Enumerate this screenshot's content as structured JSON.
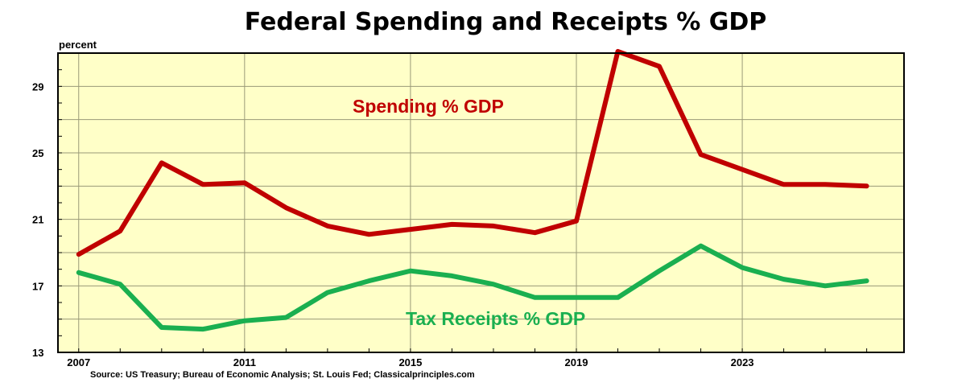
{
  "title": "Federal Spending and Receipts % GDP",
  "ylabel": "percent",
  "source": "Source: US Treasury; Bureau of Economic Analysis; St. Louis Fed; Classicalprinciples.com",
  "colors": {
    "spending": "#c00000",
    "receipts": "#1aaf50",
    "plot_bg": "#ffffc8",
    "grid": "#9a9a78"
  },
  "chart_data": {
    "type": "line",
    "x": [
      2007,
      2008,
      2009,
      2010,
      2011,
      2012,
      2013,
      2014,
      2015,
      2016,
      2017,
      2018,
      2019,
      2020,
      2021,
      2022,
      2023,
      2024,
      2025,
      2026
    ],
    "series": [
      {
        "name": "Spending % GDP",
        "values": [
          18.9,
          20.3,
          24.4,
          23.1,
          23.2,
          21.7,
          20.6,
          20.1,
          20.4,
          20.7,
          20.6,
          20.2,
          20.9,
          31.1,
          30.2,
          24.9,
          24.0,
          23.1,
          23.1,
          23.0
        ]
      },
      {
        "name": "Tax Receipts % GDP",
        "values": [
          17.8,
          17.1,
          14.5,
          14.4,
          14.9,
          15.1,
          16.6,
          17.3,
          17.9,
          17.6,
          17.1,
          16.3,
          16.3,
          16.3,
          17.9,
          19.4,
          18.1,
          17.4,
          17.0,
          17.3
        ]
      }
    ],
    "xticks": [
      2007,
      2011,
      2015,
      2019,
      2023
    ],
    "yticks": [
      13,
      17,
      21,
      25,
      29
    ],
    "xlim": [
      2006.5,
      2026.9
    ],
    "ylim": [
      13,
      31
    ],
    "grid": true
  }
}
